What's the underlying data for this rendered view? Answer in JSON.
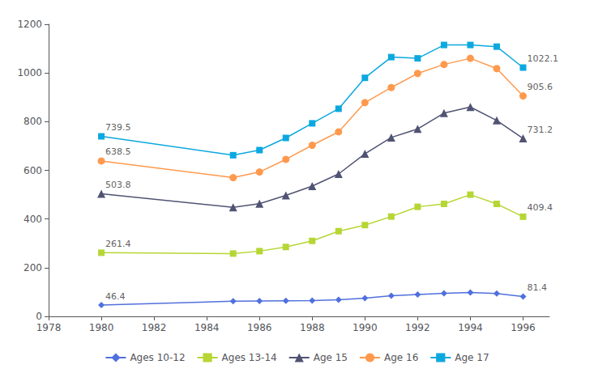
{
  "chart_data": {
    "type": "line",
    "x": [
      1980,
      1985,
      1986,
      1987,
      1988,
      1989,
      1990,
      1991,
      1992,
      1993,
      1994,
      1995,
      1996
    ],
    "series": [
      {
        "name": "Ages 10-12",
        "marker": "diamond",
        "values": [
          46.4,
          62.0,
          63.0,
          64.0,
          65.0,
          68.0,
          75.0,
          85.0,
          90.0,
          95.0,
          98.0,
          94.0,
          81.4
        ]
      },
      {
        "name": "Ages 13-14",
        "marker": "square",
        "values": [
          261.4,
          258.0,
          268.0,
          285.0,
          310.0,
          350.0,
          375.0,
          410.0,
          450.0,
          462.0,
          500.0,
          462.0,
          409.4
        ]
      },
      {
        "name": "Age 15",
        "marker": "triangle",
        "values": [
          503.8,
          448.0,
          463.0,
          497.0,
          535.0,
          585.0,
          668.0,
          735.0,
          770.0,
          835.0,
          860.0,
          805.0,
          731.2
        ]
      },
      {
        "name": "Age 16",
        "marker": "circle",
        "values": [
          638.5,
          570.0,
          593.0,
          645.0,
          703.0,
          758.0,
          878.0,
          940.0,
          998.0,
          1035.0,
          1060.0,
          1018.0,
          905.6
        ]
      },
      {
        "name": "Age 17",
        "marker": "square",
        "values": [
          739.5,
          662.0,
          683.0,
          733.0,
          793.0,
          853.0,
          980.0,
          1065.0,
          1060.0,
          1115.0,
          1115.0,
          1108.0,
          1022.1
        ]
      }
    ],
    "annotations": [
      {
        "x": 1980,
        "y": 46.4,
        "text": "46.4"
      },
      {
        "x": 1980,
        "y": 261.4,
        "text": "261.4"
      },
      {
        "x": 1980,
        "y": 503.8,
        "text": "503.8"
      },
      {
        "x": 1980,
        "y": 638.5,
        "text": "638.5"
      },
      {
        "x": 1980,
        "y": 739.5,
        "text": "739.5"
      },
      {
        "x": 1996,
        "y": 81.4,
        "text": "81.4"
      },
      {
        "x": 1996,
        "y": 409.4,
        "text": "409.4"
      },
      {
        "x": 1996,
        "y": 731.2,
        "text": "731.2"
      },
      {
        "x": 1996,
        "y": 905.6,
        "text": "905.6"
      },
      {
        "x": 1996,
        "y": 1022.1,
        "text": "1022.1"
      }
    ],
    "xlim": [
      1978,
      1997
    ],
    "xticks": [
      1978,
      1980,
      1982,
      1984,
      1986,
      1988,
      1990,
      1992,
      1994,
      1996
    ],
    "ylim": [
      0,
      1200
    ],
    "yticks": [
      0,
      200,
      400,
      600,
      800,
      1000,
      1200
    ],
    "grid": false,
    "legend": "bottom"
  }
}
